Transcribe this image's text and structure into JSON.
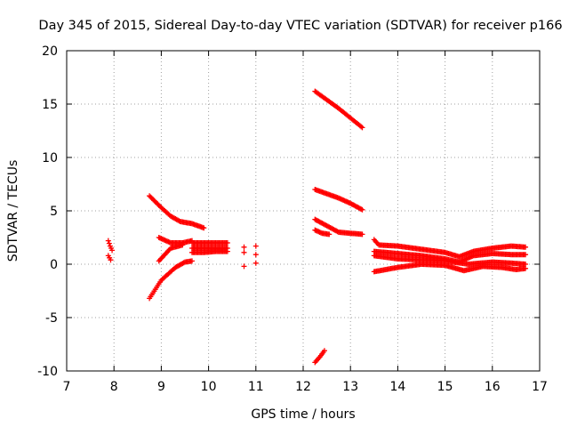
{
  "chart_data": {
    "type": "scatter",
    "title": "Day 345 of 2015, Sidereal Day-to-day VTEC variation (SDTVAR) for receiver p166",
    "xlabel": "GPS time / hours",
    "ylabel": "SDTVAR / TECUs",
    "xlim": [
      7,
      17
    ],
    "ylim": [
      -10,
      20
    ],
    "xticks": [
      "7",
      "8",
      "9",
      "10",
      "11",
      "12",
      "13",
      "14",
      "15",
      "16",
      "17"
    ],
    "yticks": [
      "-10",
      "-5",
      "0",
      "5",
      "10",
      "15",
      "20"
    ],
    "grid": true,
    "marker": "plus",
    "color": "#ff0000",
    "segments": [
      {
        "name": "t8-upper",
        "points": [
          [
            7.88,
            2.2
          ],
          [
            7.92,
            1.7
          ],
          [
            7.96,
            1.3
          ]
        ]
      },
      {
        "name": "t8-lower",
        "points": [
          [
            7.88,
            0.8
          ],
          [
            7.93,
            0.4
          ]
        ]
      },
      {
        "name": "a-top",
        "points": [
          [
            8.75,
            6.4
          ],
          [
            9.0,
            5.3
          ],
          [
            9.2,
            4.5
          ],
          [
            9.4,
            4.0
          ],
          [
            9.65,
            3.8
          ],
          [
            9.9,
            3.4
          ]
        ]
      },
      {
        "name": "a-mid",
        "points": [
          [
            8.95,
            2.5
          ],
          [
            9.2,
            2.0
          ],
          [
            9.45,
            2.0
          ],
          [
            9.65,
            2.2
          ]
        ]
      },
      {
        "name": "a-low",
        "points": [
          [
            8.95,
            0.3
          ],
          [
            9.2,
            1.5
          ],
          [
            9.45,
            1.8
          ]
        ]
      },
      {
        "name": "a-bottom",
        "points": [
          [
            8.75,
            -3.2
          ],
          [
            9.0,
            -1.5
          ],
          [
            9.3,
            -0.3
          ],
          [
            9.5,
            0.2
          ],
          [
            9.65,
            0.3
          ]
        ]
      },
      {
        "name": "b-top",
        "points": [
          [
            9.65,
            2.0
          ],
          [
            9.9,
            2.0
          ],
          [
            10.15,
            2.0
          ],
          [
            10.4,
            2.0
          ]
        ]
      },
      {
        "name": "b-mid",
        "points": [
          [
            9.65,
            1.5
          ],
          [
            9.9,
            1.5
          ],
          [
            10.15,
            1.5
          ],
          [
            10.4,
            1.5
          ]
        ]
      },
      {
        "name": "b-low",
        "points": [
          [
            9.65,
            1.1
          ],
          [
            9.9,
            1.1
          ],
          [
            10.15,
            1.2
          ],
          [
            10.4,
            1.2
          ]
        ]
      },
      {
        "name": "isolated",
        "points": [
          [
            10.75,
            1.6
          ],
          [
            10.75,
            1.1
          ],
          [
            10.75,
            -0.2
          ],
          [
            11.0,
            1.7
          ],
          [
            11.0,
            0.9
          ],
          [
            11.0,
            0.1
          ]
        ]
      },
      {
        "name": "c-top",
        "points": [
          [
            12.25,
            16.2
          ],
          [
            12.5,
            15.4
          ],
          [
            12.75,
            14.6
          ],
          [
            13.0,
            13.7
          ],
          [
            13.25,
            12.8
          ]
        ]
      },
      {
        "name": "c-second",
        "points": [
          [
            12.25,
            7.0
          ],
          [
            12.5,
            6.6
          ],
          [
            12.75,
            6.2
          ],
          [
            13.0,
            5.7
          ],
          [
            13.25,
            5.1
          ]
        ]
      },
      {
        "name": "c-third",
        "points": [
          [
            12.25,
            4.2
          ],
          [
            12.5,
            3.6
          ],
          [
            12.75,
            3.0
          ],
          [
            13.0,
            2.9
          ],
          [
            13.25,
            2.8
          ]
        ]
      },
      {
        "name": "c-fourth",
        "points": [
          [
            12.25,
            3.2
          ],
          [
            12.4,
            2.9
          ],
          [
            12.55,
            2.8
          ]
        ]
      },
      {
        "name": "c-bottom",
        "points": [
          [
            12.25,
            -9.2
          ],
          [
            12.35,
            -8.7
          ],
          [
            12.45,
            -8.1
          ]
        ]
      },
      {
        "name": "d-top",
        "points": [
          [
            13.5,
            2.3
          ],
          [
            13.6,
            1.8
          ],
          [
            14.0,
            1.7
          ],
          [
            14.5,
            1.4
          ],
          [
            15.0,
            1.1
          ],
          [
            15.3,
            0.7
          ],
          [
            15.6,
            1.2
          ],
          [
            16.0,
            1.5
          ],
          [
            16.4,
            1.7
          ],
          [
            16.7,
            1.6
          ]
        ]
      },
      {
        "name": "d-mid",
        "points": [
          [
            13.5,
            1.2
          ],
          [
            14.0,
            1.0
          ],
          [
            14.5,
            0.8
          ],
          [
            15.0,
            0.5
          ],
          [
            15.3,
            0.2
          ],
          [
            15.6,
            0.8
          ],
          [
            16.0,
            1.0
          ],
          [
            16.4,
            0.9
          ],
          [
            16.7,
            0.9
          ]
        ]
      },
      {
        "name": "d-low",
        "points": [
          [
            13.5,
            0.8
          ],
          [
            14.0,
            0.5
          ],
          [
            14.5,
            0.4
          ],
          [
            15.0,
            0.3
          ],
          [
            15.5,
            0.0
          ],
          [
            16.0,
            0.2
          ],
          [
            16.4,
            0.1
          ],
          [
            16.7,
            0.0
          ]
        ]
      },
      {
        "name": "d-bottom",
        "points": [
          [
            13.5,
            -0.7
          ],
          [
            14.0,
            -0.3
          ],
          [
            14.5,
            0.0
          ],
          [
            15.0,
            -0.1
          ],
          [
            15.4,
            -0.6
          ],
          [
            15.8,
            -0.2
          ],
          [
            16.2,
            -0.3
          ],
          [
            16.5,
            -0.5
          ],
          [
            16.7,
            -0.4
          ]
        ]
      }
    ]
  }
}
